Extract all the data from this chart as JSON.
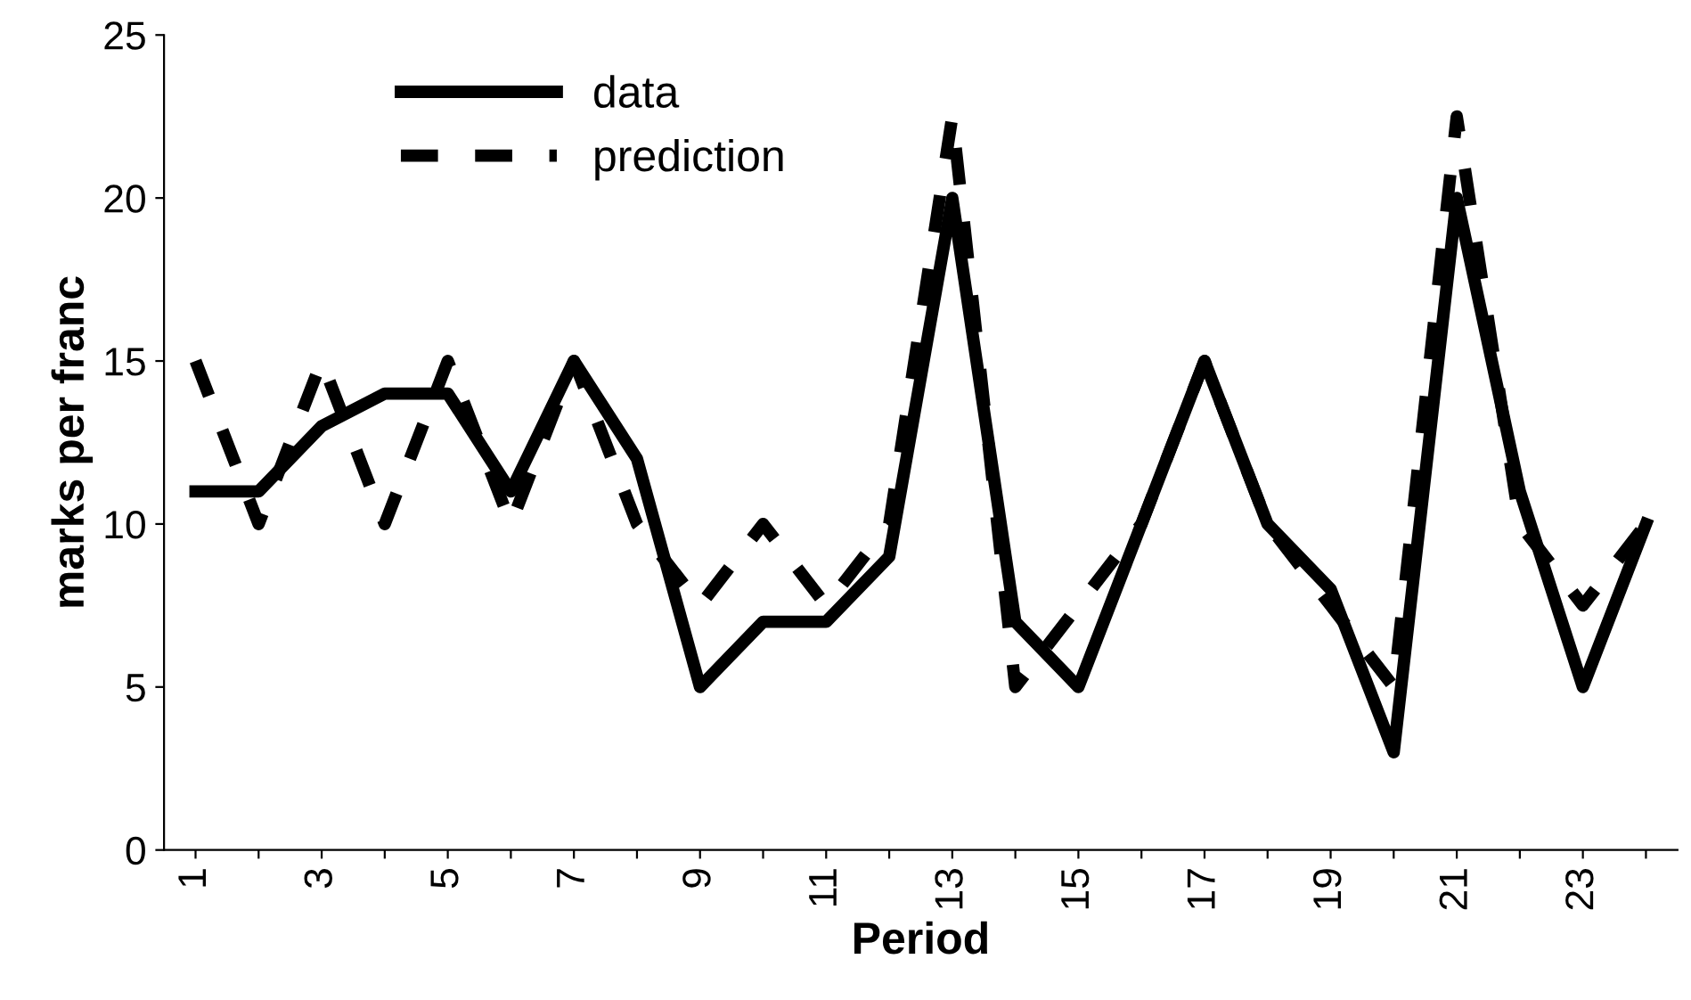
{
  "chart_data": {
    "type": "line",
    "xlabel": "Period",
    "ylabel": "marks per franc",
    "categories": [
      "1",
      null,
      "3",
      null,
      "5",
      null,
      "7",
      null,
      "9",
      null,
      "11",
      null,
      "13",
      null,
      "15",
      null,
      "17",
      null,
      "19",
      null,
      "21",
      null,
      "23",
      null
    ],
    "series": [
      {
        "name": "data",
        "color": "#000000",
        "line_style": "solid",
        "values": [
          11,
          11,
          13,
          14,
          14,
          11,
          15,
          12,
          5,
          7,
          7,
          9,
          20,
          7,
          5,
          10,
          15,
          10,
          8,
          3,
          20,
          11,
          5,
          10
        ]
      },
      {
        "name": "prediction",
        "color": "#000000",
        "line_style": "dashed",
        "values": [
          15,
          10,
          15,
          10,
          15,
          10,
          15,
          10,
          7.5,
          10,
          7.5,
          10,
          22.5,
          5,
          7.5,
          10,
          15,
          10,
          7.5,
          5,
          22.5,
          10,
          7.5,
          10
        ]
      }
    ],
    "ylim": [
      0,
      25
    ],
    "yticks": [
      0,
      5,
      10,
      15,
      20,
      25
    ],
    "grid": false,
    "legend": "top left",
    "marker": "none"
  }
}
